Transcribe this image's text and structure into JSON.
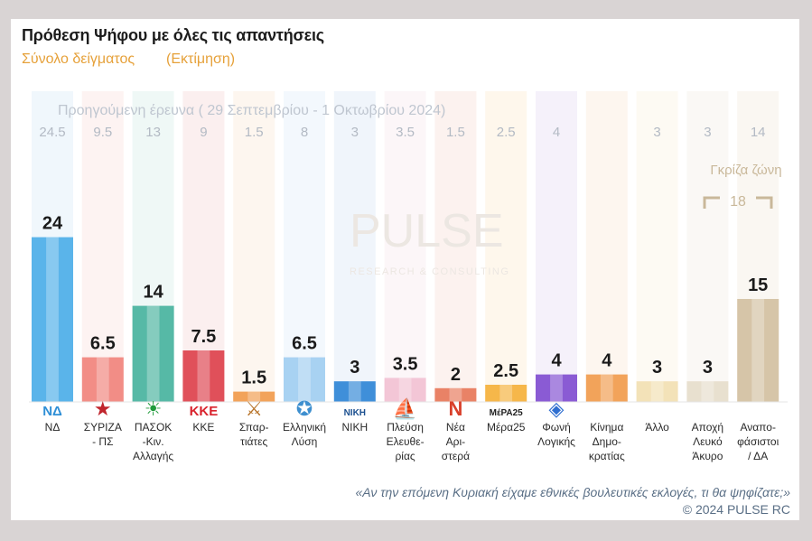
{
  "header": {
    "title": "Πρόθεση Ψήφου με όλες τις απαντήσεις",
    "subtitle_left": "Σύνολο δείγματος",
    "subtitle_right": "(Εκτίμηση)"
  },
  "prev_label": "Προηγούμενη έρευνα ( 29 Σεπτεμβρίου - 1 Οκτωβρίου 2024)",
  "grey_zone": {
    "label": "Γκρίζα ζώνη",
    "value": "18"
  },
  "watermark": {
    "line1": "PULSE",
    "line2": "RESEARCH & CONSULTING"
  },
  "footer": {
    "question": "«Αν την επόμενη Κυριακή είχαμε εθνικές βουλευτικές εκλογές, τι θα ψηφίζατε;»",
    "copyright": "©  2024  PULSE RC"
  },
  "chart_data": {
    "type": "bar",
    "ylim": [
      0,
      30
    ],
    "categories": [
      {
        "name": "ΝΔ",
        "lines": [
          "ΝΔ"
        ],
        "value": 24,
        "label": "24",
        "prev": "24.5",
        "color": "#5ab4ea",
        "bg": "#e4f0fa",
        "logo": "ΝΔ",
        "logo_color": "#2f8fd6"
      },
      {
        "name": "ΣΥΡΙΖΑ - ΠΣ",
        "lines": [
          "ΣΥΡΙΖΑ",
          "- ΠΣ"
        ],
        "value": 6.5,
        "label": "6.5",
        "prev": "9.5",
        "color": "#f28d86",
        "bg": "#fbeae8",
        "logo": "★",
        "logo_color": "#c0252d"
      },
      {
        "name": "ΠΑΣΟΚ -Κιν. Αλλαγής",
        "lines": [
          "ΠΑΣΟΚ",
          "-Κιν.",
          "Αλλαγής"
        ],
        "value": 14,
        "label": "14",
        "prev": "13",
        "color": "#56b9a6",
        "bg": "#e2f2ee",
        "logo": "☀",
        "logo_color": "#1f9a3a"
      },
      {
        "name": "ΚΚΕ",
        "lines": [
          "ΚΚΕ"
        ],
        "value": 7.5,
        "label": "7.5",
        "prev": "9",
        "color": "#e0505a",
        "bg": "#f8e1e1",
        "logo": "ΚΚΕ",
        "logo_color": "#d9232d"
      },
      {
        "name": "Σπαρτιάτες",
        "lines": [
          "Σπαρ-",
          "τιάτες"
        ],
        "value": 1.5,
        "label": "1.5",
        "prev": "1.5",
        "color": "#f2a35a",
        "bg": "#fbeee2",
        "logo": "⚔",
        "logo_color": "#b8742a"
      },
      {
        "name": "Ελληνική Λύση",
        "lines": [
          "Ελληνική",
          "Λύση"
        ],
        "value": 6.5,
        "label": "6.5",
        "prev": "8",
        "color": "#a8d2f2",
        "bg": "#eaf3fb",
        "logo": "✪",
        "logo_color": "#3e8fcf"
      },
      {
        "name": "ΝΙΚΗ",
        "lines": [
          "ΝΙΚΗ"
        ],
        "value": 3,
        "label": "3",
        "prev": "3",
        "color": "#3f8fd9",
        "bg": "#e3edf8",
        "logo": "ΝΙΚΗ",
        "logo_color": "#1b4f8f"
      },
      {
        "name": "Πλεύση Ελευθερίας",
        "lines": [
          "Πλεύση",
          "Ελευθε-",
          "ρίας"
        ],
        "value": 3.5,
        "label": "3.5",
        "prev": "3.5",
        "color": "#f3c6d6",
        "bg": "#f9eef3",
        "logo": "⛵",
        "logo_color": "#7a5aa8"
      },
      {
        "name": "Νέα Αριστερά",
        "lines": [
          "Νέα",
          "Αρι-",
          "στερά"
        ],
        "value": 2,
        "label": "2",
        "prev": "1.5",
        "color": "#e98266",
        "bg": "#f9e7e2",
        "logo": "Ν",
        "logo_color": "#d9402b"
      },
      {
        "name": "Μέρα25",
        "lines": [
          "Μέρα25"
        ],
        "value": 2.5,
        "label": "2.5",
        "prev": "2.5",
        "color": "#f6b74a",
        "bg": "#fdf0dd",
        "logo": "ΜέΡΑ25",
        "logo_color": "#222222"
      },
      {
        "name": "Φωνή Λογικής",
        "lines": [
          "Φωνή",
          "Λογικής"
        ],
        "value": 4,
        "label": "4",
        "prev": "4",
        "color": "#8a5bd4",
        "bg": "#ece5f6",
        "logo": "◈",
        "logo_color": "#2f6fd0"
      },
      {
        "name": "Κίνημα Δημοκρατίας",
        "lines": [
          "Κίνημα",
          "Δημο-",
          "κρατίας"
        ],
        "value": 4,
        "label": "4",
        "prev": "",
        "color": "#f2a35a",
        "bg": "#fcefe2",
        "logo": "",
        "logo_color": "#ffffff"
      },
      {
        "name": "Άλλο",
        "lines": [
          "Άλλο"
        ],
        "value": 3,
        "label": "3",
        "prev": "3",
        "color": "#f3e2b8",
        "bg": "#fbf6ea",
        "logo": "",
        "logo_color": "#ffffff"
      },
      {
        "name": "Αποχή Λευκό Άκυρο",
        "lines": [
          "Αποχή",
          "Λευκό",
          "Άκυρο"
        ],
        "value": 3,
        "label": "3",
        "prev": "3",
        "color": "#e8e0cf",
        "bg": "#f6f3ec",
        "logo": "",
        "logo_color": "#ffffff"
      },
      {
        "name": "Αναποφάσιστοι / ΔΑ",
        "lines": [
          "Αναπο-",
          "φάσιστοι",
          "/ ΔΑ"
        ],
        "value": 15,
        "label": "15",
        "prev": "14",
        "color": "#d6c5a8",
        "bg": "#f6f1e8",
        "logo": "",
        "logo_color": "#ffffff"
      }
    ]
  }
}
